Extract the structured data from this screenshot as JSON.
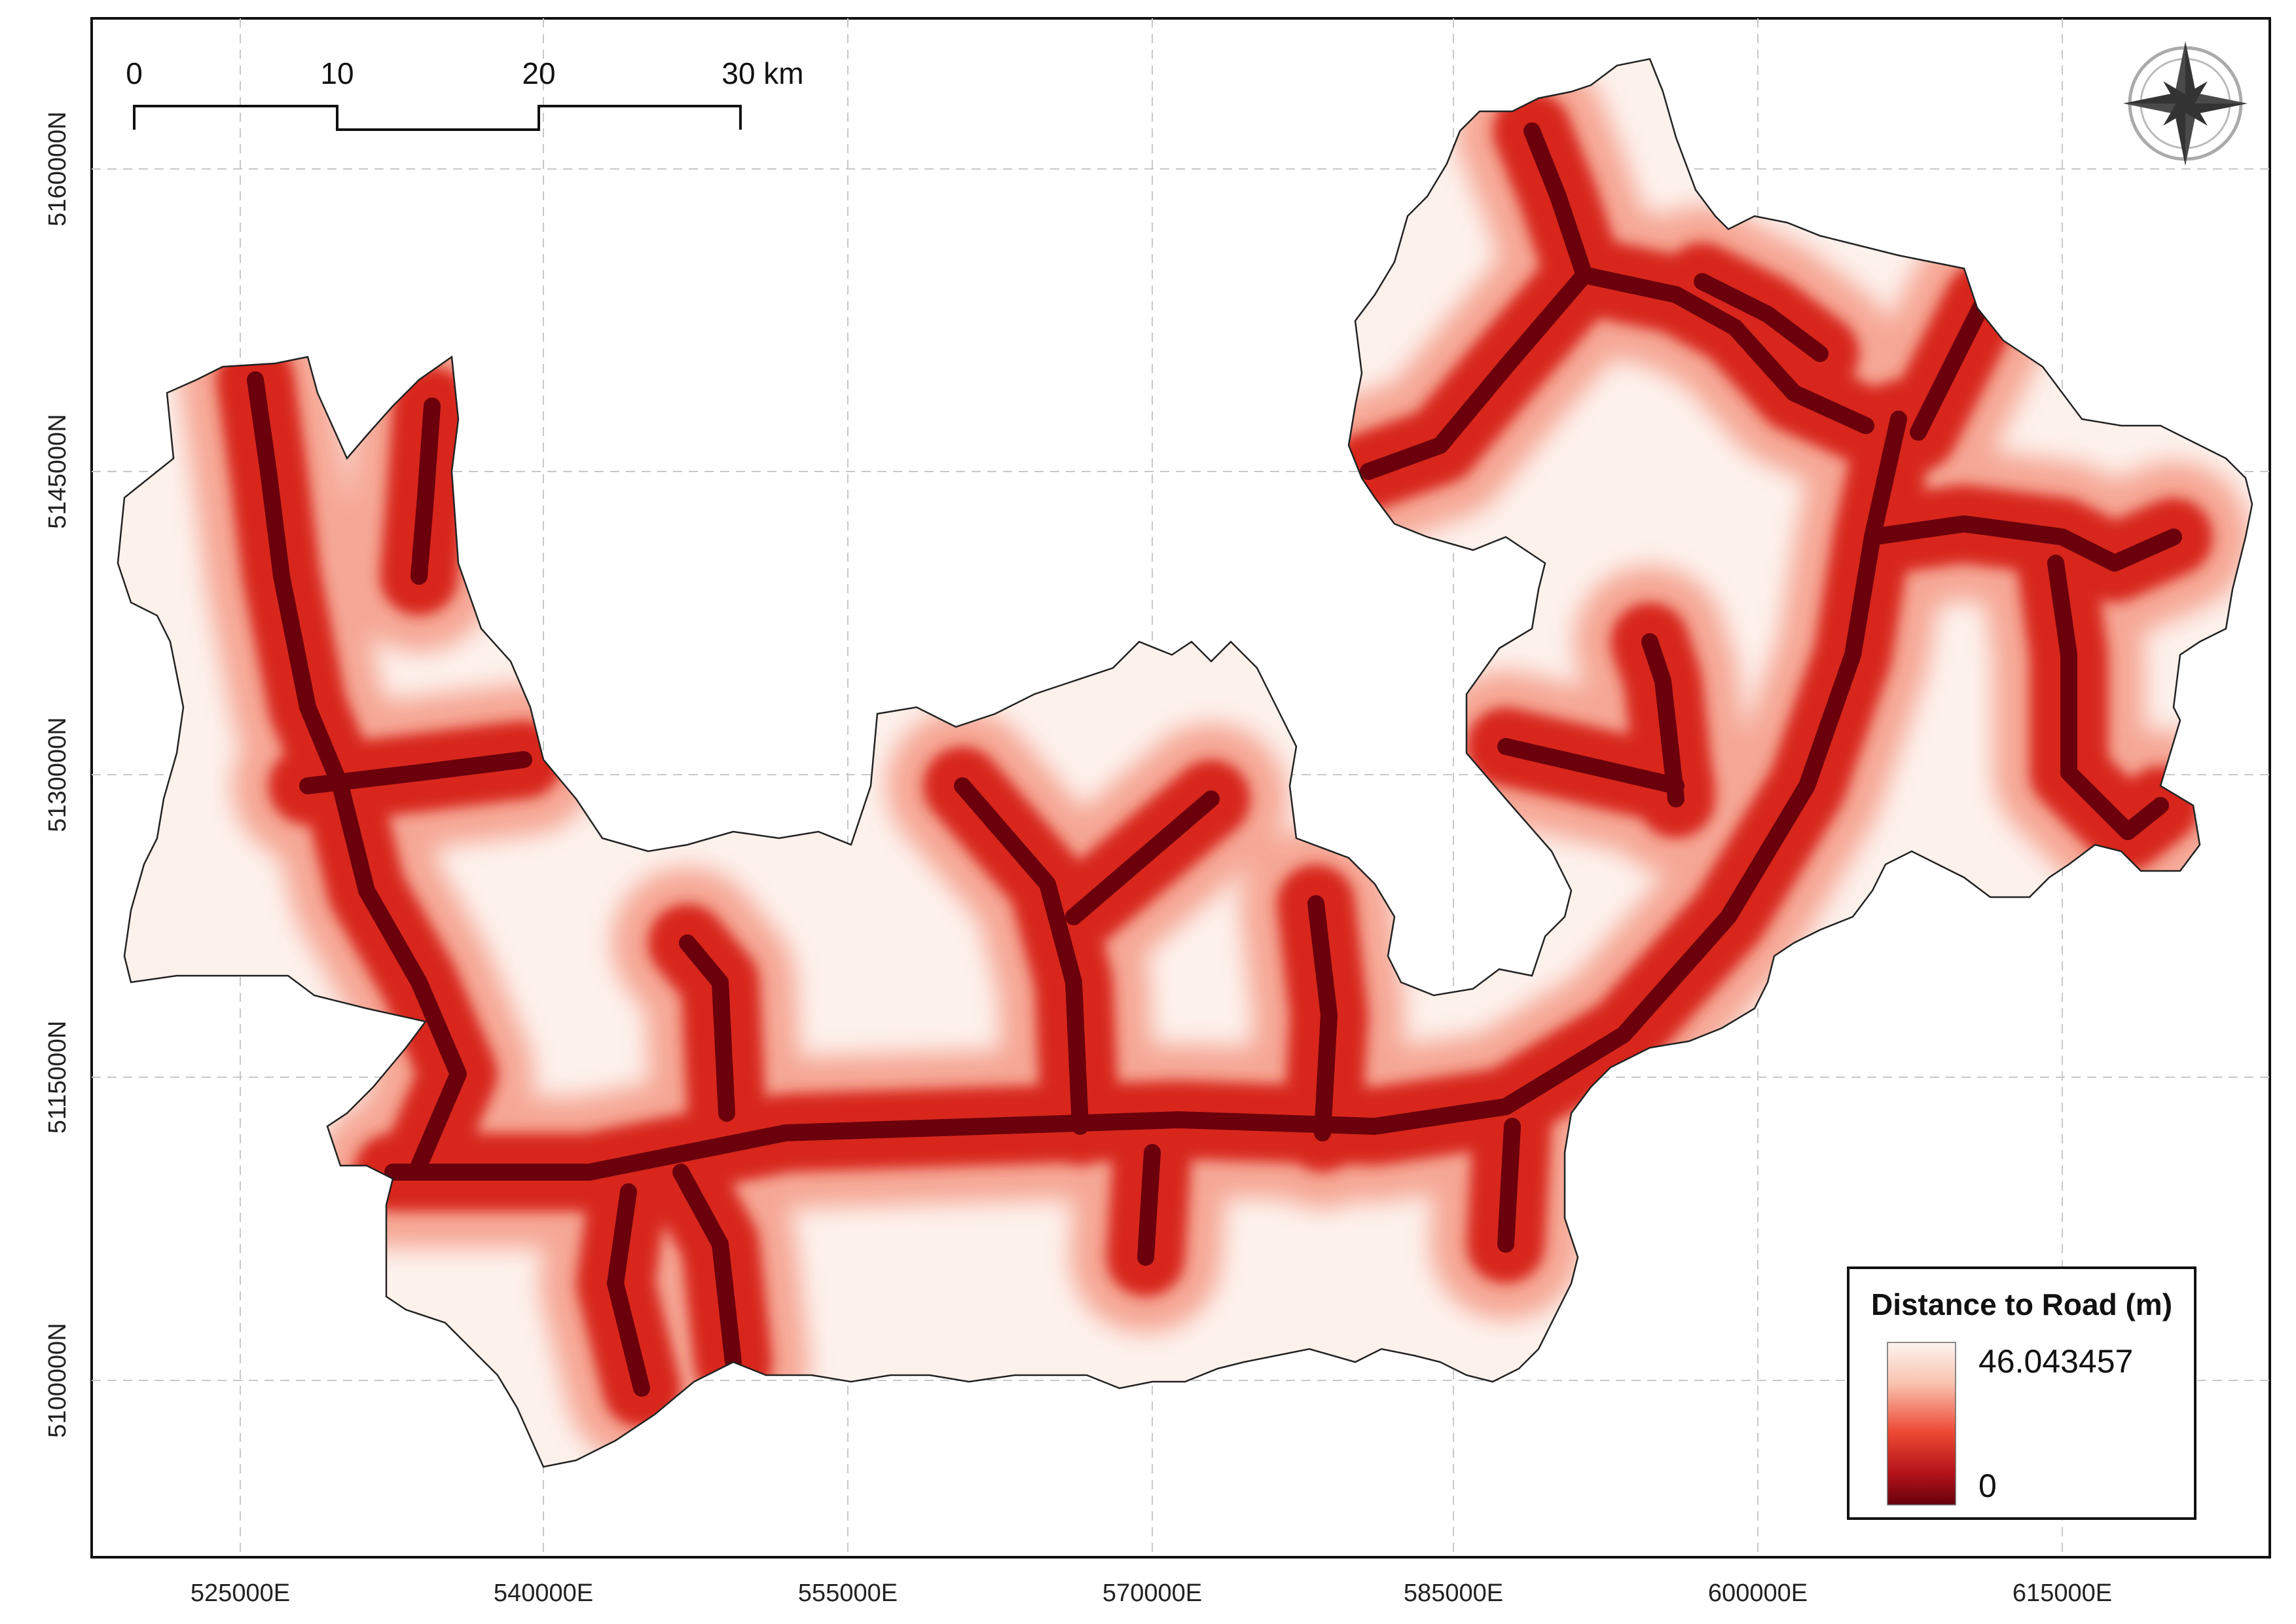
{
  "map": {
    "x_ticks": [
      "525000E",
      "540000E",
      "555000E",
      "570000E",
      "585000E",
      "600000E",
      "615000E"
    ],
    "y_ticks": [
      "5160000N",
      "5145000N",
      "5130000N",
      "5115000N",
      "5100000N"
    ],
    "scale_bar": {
      "labels": [
        "0",
        "10",
        "20",
        "30 km"
      ]
    },
    "north_arrow": {
      "icon": "compass-rose-icon"
    },
    "legend": {
      "title": "Distance to Road (m)",
      "max_label": "46.043457",
      "min_label": "0",
      "ramp_colors": [
        "#fdf3ef",
        "#f7b7a3",
        "#e8402f",
        "#b01217",
        "#67000d"
      ]
    },
    "colors": {
      "road": "#6b000c",
      "near": "#c81d1d",
      "mid": "#ef5a3c",
      "far": "#fdf1ec",
      "boundary": "#222222",
      "grid": "#c8c8c8"
    }
  }
}
